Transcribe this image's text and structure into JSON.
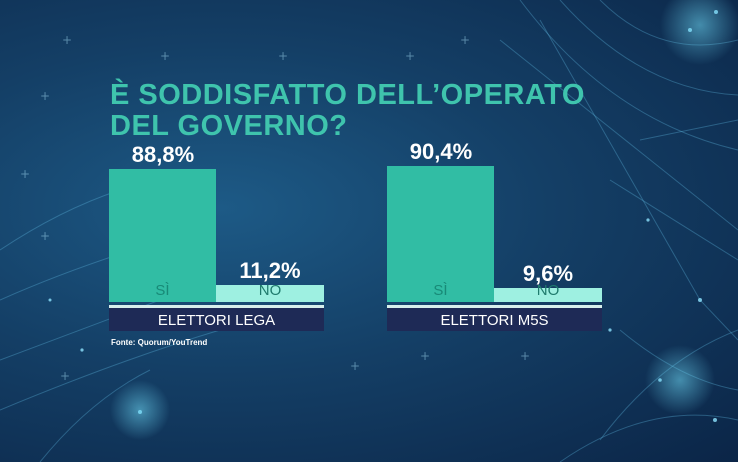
{
  "title_line1": "È SODDISFATTO DELL’OPERATO",
  "title_line2": "DEL GOVERNO?",
  "colors": {
    "yes": "#31bda4",
    "no": "#9ef0e1",
    "base": "#1e2a56",
    "title": "#3fc4ad"
  },
  "chart_data": [
    {
      "type": "bar",
      "categories": [
        "SÌ",
        "NO"
      ],
      "values": [
        88.8,
        11.2
      ],
      "value_labels": [
        "88,8%",
        "11,2%"
      ],
      "xlabel": "ELETTORI LEGA",
      "ylim": [
        0,
        100
      ]
    },
    {
      "type": "bar",
      "categories": [
        "SÌ",
        "NO"
      ],
      "values": [
        90.4,
        9.6
      ],
      "value_labels": [
        "90,4%",
        "9,6%"
      ],
      "xlabel": "ELETTORI M5S",
      "ylim": [
        0,
        100
      ]
    }
  ],
  "source": "Fonte: Quorum/YouTrend"
}
